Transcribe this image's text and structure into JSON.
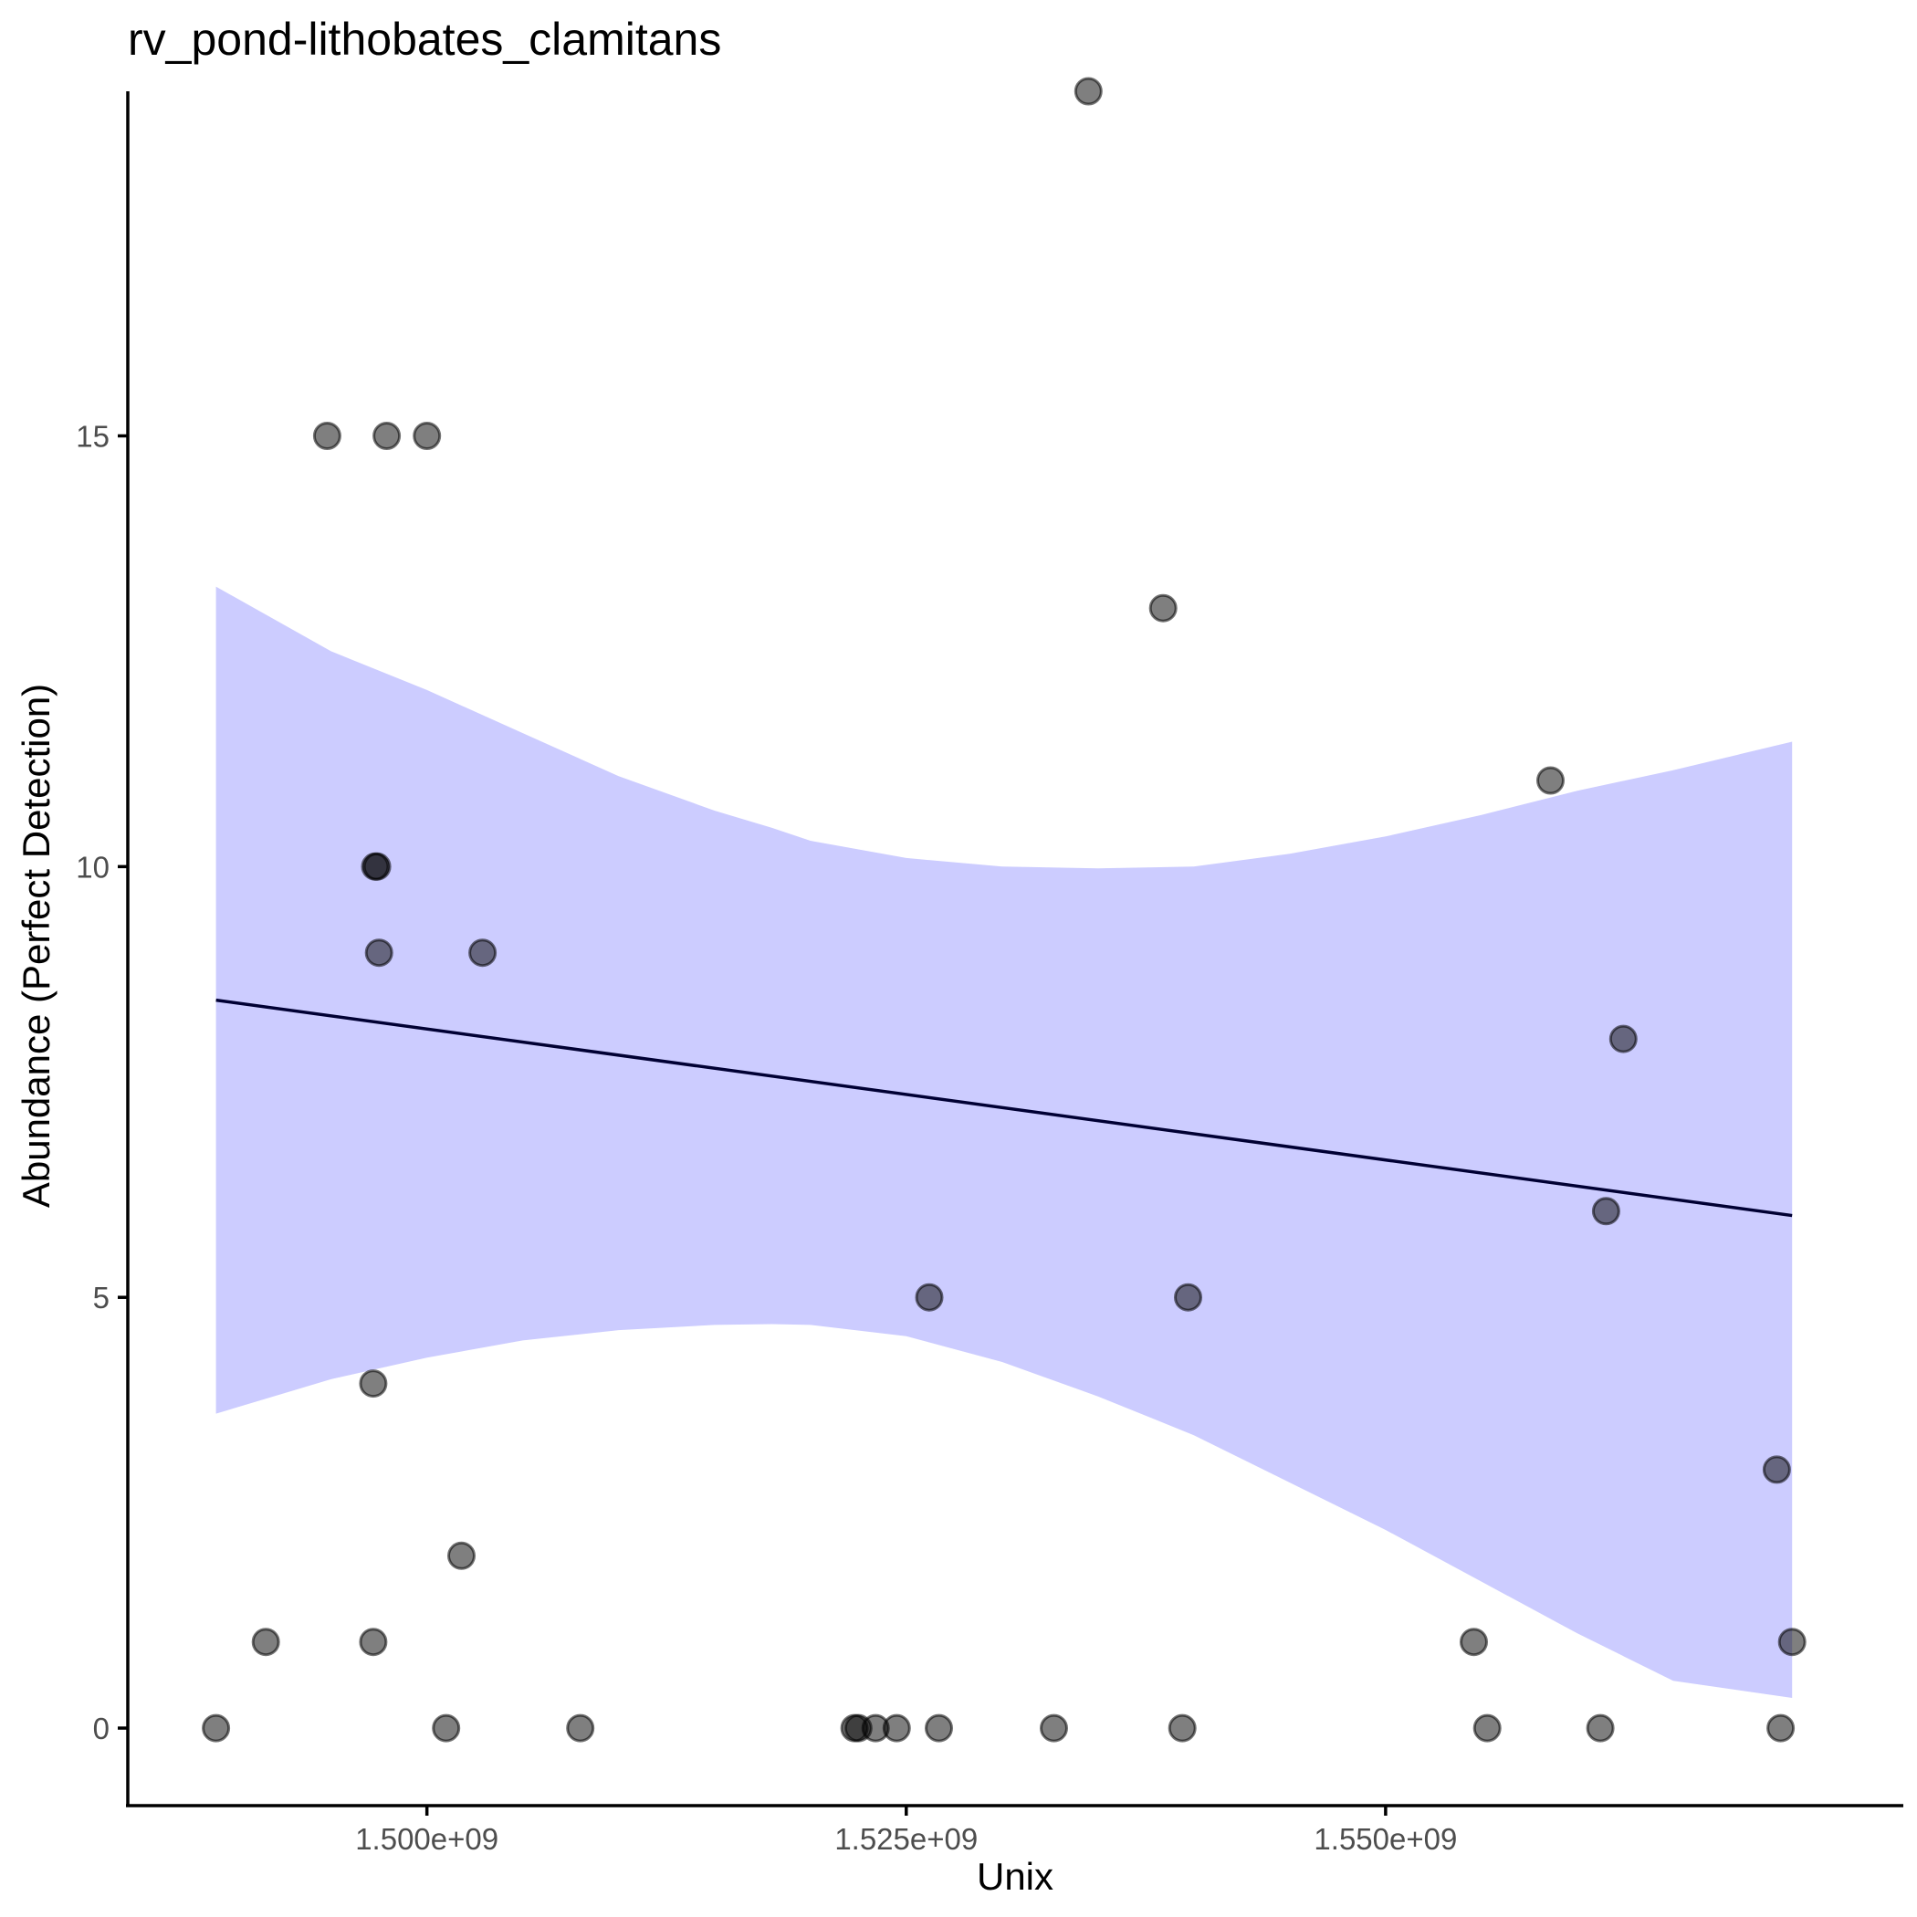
{
  "chart_data": {
    "type": "scatter",
    "title": "rv_pond-lithobates_clamitans",
    "xlabel": "Unix",
    "ylabel": "Abundance (Perfect Detection)",
    "xlim": [
      1484400000,
      1577000000
    ],
    "ylim": [
      -0.9,
      19.0
    ],
    "xticks": [
      {
        "value": 1500000000,
        "label": "1.500e+09"
      },
      {
        "value": 1525000000,
        "label": "1.525e+09"
      },
      {
        "value": 1550000000,
        "label": "1.550e+09"
      }
    ],
    "yticks": [
      {
        "value": 0,
        "label": "0"
      },
      {
        "value": 5,
        "label": "5"
      },
      {
        "value": 10,
        "label": "10"
      },
      {
        "value": 15,
        "label": "15"
      }
    ],
    "grid": false,
    "legend": "none",
    "point_color": "#000000",
    "band_color": "#ccccff",
    "line_color": "#000033",
    "points": [
      {
        "x": 1489000000,
        "y": 0
      },
      {
        "x": 1491600000,
        "y": 1
      },
      {
        "x": 1494800000,
        "y": 15
      },
      {
        "x": 1497200000,
        "y": 4
      },
      {
        "x": 1497200000,
        "y": 1
      },
      {
        "x": 1497300000,
        "y": 10
      },
      {
        "x": 1497400000,
        "y": 10
      },
      {
        "x": 1497500000,
        "y": 9
      },
      {
        "x": 1497900000,
        "y": 15
      },
      {
        "x": 1500000000,
        "y": 15
      },
      {
        "x": 1501000000,
        "y": 0
      },
      {
        "x": 1501800000,
        "y": 2
      },
      {
        "x": 1502900000,
        "y": 9
      },
      {
        "x": 1508000000,
        "y": 0
      },
      {
        "x": 1522300000,
        "y": 0
      },
      {
        "x": 1522500000,
        "y": 0
      },
      {
        "x": 1523400000,
        "y": 0
      },
      {
        "x": 1524500000,
        "y": 0
      },
      {
        "x": 1526200000,
        "y": 5
      },
      {
        "x": 1526700000,
        "y": 0
      },
      {
        "x": 1532700000,
        "y": 0
      },
      {
        "x": 1534500000,
        "y": 19
      },
      {
        "x": 1538400000,
        "y": 13
      },
      {
        "x": 1539400000,
        "y": 0
      },
      {
        "x": 1539700000,
        "y": 5
      },
      {
        "x": 1554600000,
        "y": 1
      },
      {
        "x": 1555300000,
        "y": 0
      },
      {
        "x": 1558600000,
        "y": 11
      },
      {
        "x": 1561200000,
        "y": 0
      },
      {
        "x": 1561500000,
        "y": 6
      },
      {
        "x": 1562400000,
        "y": 8
      },
      {
        "x": 1570400000,
        "y": 3
      },
      {
        "x": 1570600000,
        "y": 0
      },
      {
        "x": 1571200000,
        "y": 1
      }
    ],
    "fit": {
      "x": [
        1489000000,
        1571200000
      ],
      "y": [
        8.45,
        5.95
      ]
    },
    "confidence_band": {
      "x": [
        1489000000,
        1495000000,
        1500000000,
        1505000000,
        1510000000,
        1515000000,
        1518000000,
        1520000000,
        1525000000,
        1530000000,
        1535000000,
        1540000000,
        1545000000,
        1550000000,
        1555000000,
        1560000000,
        1565000000,
        1571200000
      ],
      "lower": [
        3.65,
        4.05,
        4.3,
        4.5,
        4.62,
        4.68,
        4.69,
        4.68,
        4.55,
        4.25,
        3.85,
        3.4,
        2.85,
        2.3,
        1.7,
        1.1,
        0.55,
        0.35
      ],
      "upper": [
        13.25,
        12.5,
        12.05,
        11.55,
        11.05,
        10.65,
        10.45,
        10.3,
        10.1,
        10.0,
        9.98,
        10.0,
        10.15,
        10.35,
        10.6,
        10.88,
        11.12,
        11.45
      ]
    }
  }
}
